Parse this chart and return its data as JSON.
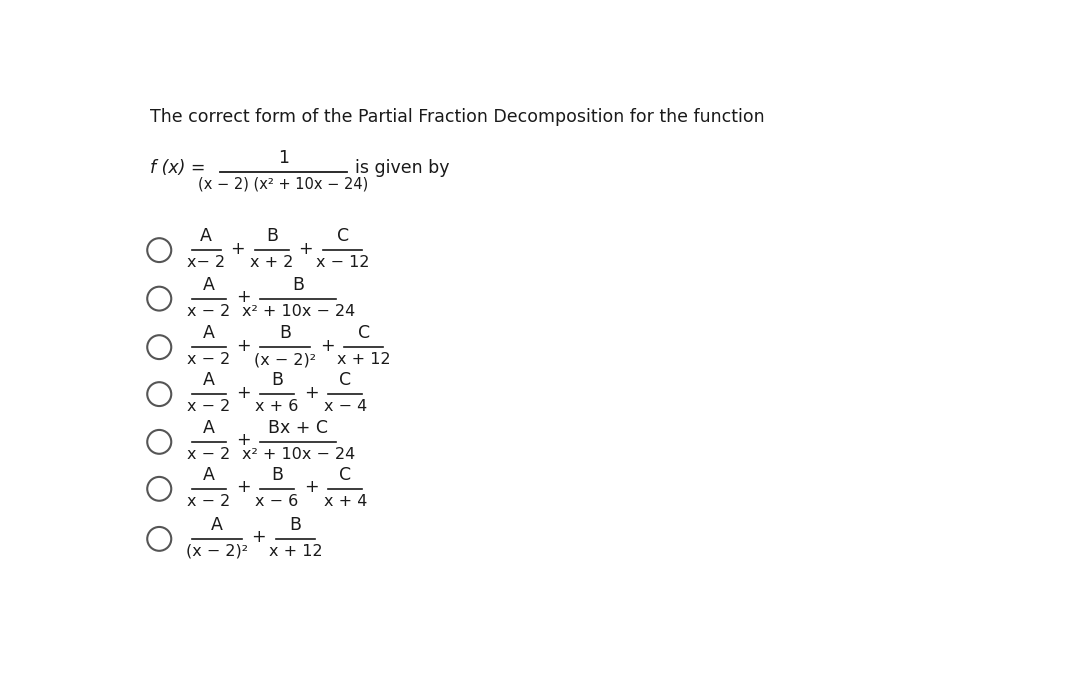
{
  "title": "The correct form of the Partial Fraction Decomposition for the function",
  "background_color": "#ffffff",
  "text_color": "#333333",
  "fig_width": 10.88,
  "fig_height": 6.92,
  "dpi": 100,
  "rows": [
    {
      "fracs": [
        [
          "A",
          "x− 2"
        ],
        [
          "B",
          "x + 2"
        ],
        [
          "C",
          "x − 12"
        ]
      ],
      "plus": [
        true,
        true
      ]
    },
    {
      "fracs": [
        [
          "A",
          "x − 2"
        ],
        [
          "B",
          "x² + 10x − 24"
        ]
      ],
      "plus": [
        true
      ]
    },
    {
      "fracs": [
        [
          "A",
          "x − 2"
        ],
        [
          "B",
          "(x − 2)²"
        ],
        [
          "C",
          "x + 12"
        ]
      ],
      "plus": [
        true,
        true
      ]
    },
    {
      "fracs": [
        [
          "A",
          "x − 2"
        ],
        [
          "B",
          "x + 6"
        ],
        [
          "C",
          "x − 4"
        ]
      ],
      "plus": [
        true,
        true
      ]
    },
    {
      "fracs": [
        [
          "A",
          "x − 2"
        ],
        [
          "Bx + C",
          "x² + 10x − 24"
        ]
      ],
      "plus": [
        true
      ]
    },
    {
      "fracs": [
        [
          "A",
          "x − 2"
        ],
        [
          "B",
          "x − 6"
        ],
        [
          "C",
          "x + 4"
        ]
      ],
      "plus": [
        true,
        true
      ]
    },
    {
      "fracs": [
        [
          "A",
          "(x − 2)²"
        ],
        [
          "B",
          "x + 12"
        ]
      ],
      "plus": [
        true
      ]
    }
  ]
}
